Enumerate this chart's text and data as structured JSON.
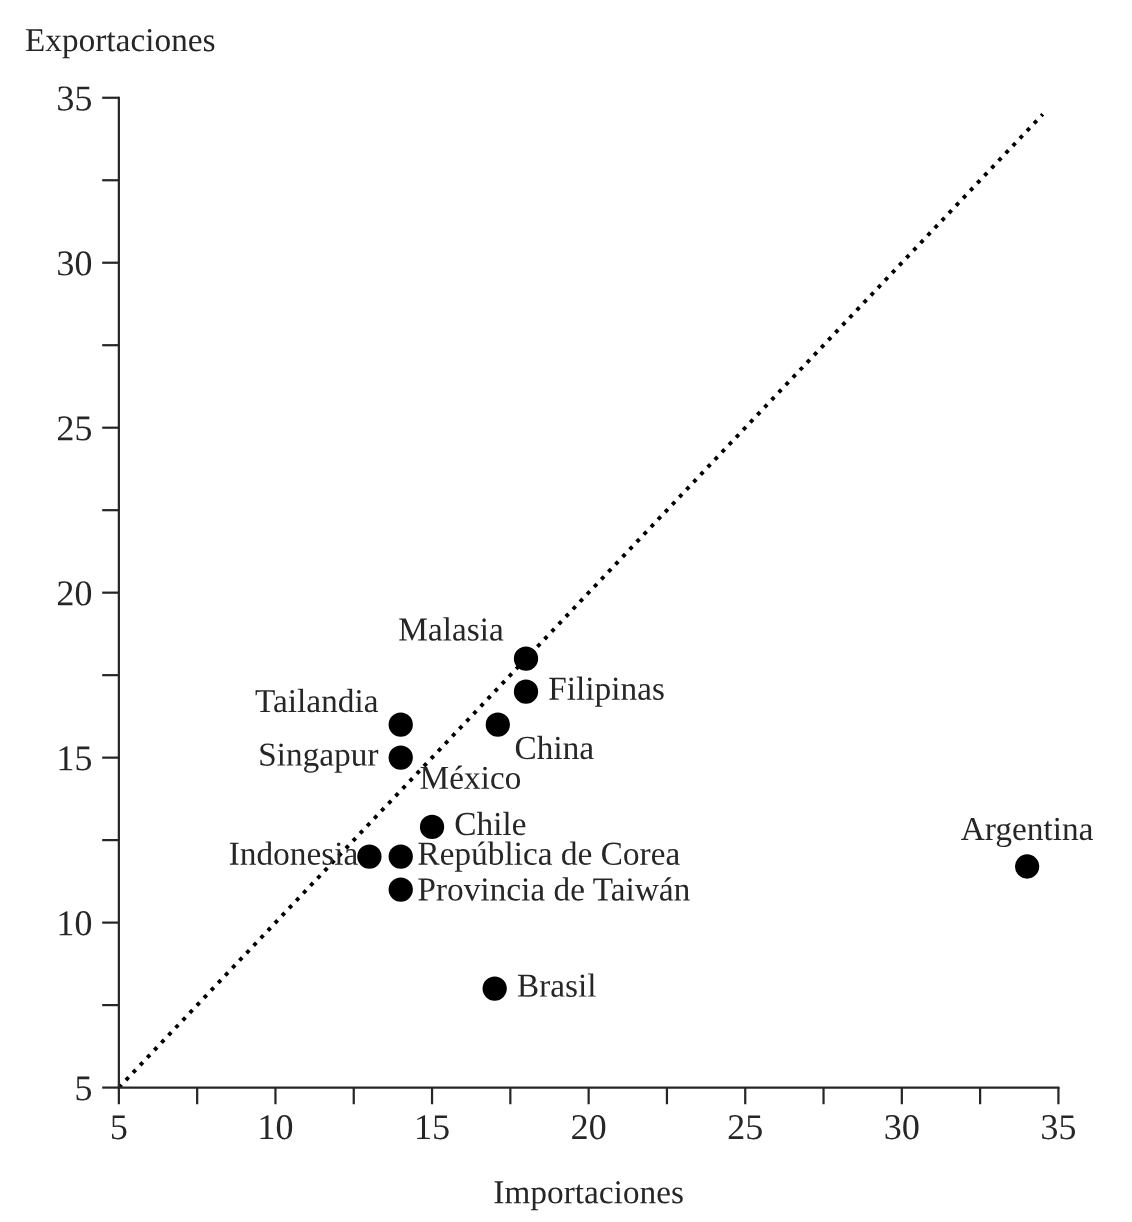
{
  "chart_data": {
    "type": "scatter",
    "xlabel": "Importaciones",
    "ylabel": "Exportaciones",
    "xlim": [
      5,
      35
    ],
    "ylim": [
      5,
      35
    ],
    "xticks": [
      5,
      {
        "value": 7.5,
        "label": null
      },
      10,
      {
        "value": 12.5,
        "label": null
      },
      15,
      {
        "value": 17.5,
        "label": null
      },
      20,
      {
        "value": 22.5,
        "label": null
      },
      25,
      {
        "value": 27.5,
        "label": null
      },
      30,
      {
        "value": 32.5,
        "label": null
      },
      35
    ],
    "yticks": [
      5,
      {
        "value": 7.5,
        "label": null
      },
      10,
      {
        "value": 12.5,
        "label": null
      },
      15,
      {
        "value": 17.5,
        "label": null
      },
      20,
      {
        "value": 22.5,
        "label": null
      },
      25,
      {
        "value": 27.5,
        "label": null
      },
      30,
      {
        "value": 32.5,
        "label": null
      },
      35
    ],
    "grid": false,
    "legend": false,
    "marker": "circle",
    "series": [
      {
        "name": "Malasia",
        "color": "#000000",
        "x": [
          18
        ],
        "values": [
          18
        ]
      },
      {
        "name": "Filipinas",
        "color": "#000000",
        "x": [
          18
        ],
        "values": [
          17
        ]
      },
      {
        "name": "Tailandia",
        "color": "#000000",
        "x": [
          14
        ],
        "values": [
          16
        ]
      },
      {
        "name": "China",
        "color": "#000000",
        "x": [
          17.1
        ],
        "values": [
          16
        ]
      },
      {
        "name": "Singapur",
        "color": "#000000",
        "x": [
          14
        ],
        "values": [
          15
        ]
      },
      {
        "name": "Chile",
        "color": "#000000",
        "x": [
          15
        ],
        "values": [
          12.9
        ]
      },
      {
        "name": "Indonesia",
        "color": "#000000",
        "x": [
          13
        ],
        "values": [
          12
        ]
      },
      {
        "name": "República de Corea",
        "color": "#000000",
        "x": [
          14
        ],
        "values": [
          12
        ]
      },
      {
        "name": "Provincia de Taiwán",
        "color": "#000000",
        "x": [
          14
        ],
        "values": [
          11
        ]
      },
      {
        "name": "Brasil",
        "color": "#000000",
        "x": [
          17
        ],
        "values": [
          8
        ]
      },
      {
        "name": "Argentina",
        "color": "#000000",
        "x": [
          34
        ],
        "values": [
          11.7
        ]
      },
      {
        "type": "line",
        "color": "#000000",
        "line_style": "dotted",
        "marker": "none",
        "x": [
          5,
          34.5
        ],
        "values": [
          5,
          34.5
        ]
      }
    ],
    "annotations": [
      {
        "text": "México",
        "x": 14.6,
        "y": 14.3
      }
    ]
  }
}
